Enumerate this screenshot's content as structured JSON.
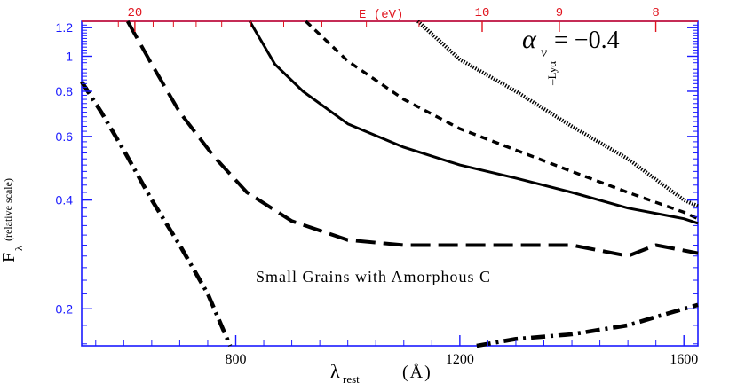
{
  "chart_data": {
    "type": "line",
    "title": "",
    "xlabel": "λ_rest (Å)",
    "xlabel_main": "λ",
    "xlabel_sub": "rest",
    "xlabel_unit": "(Å)",
    "ylabel": "F_λ",
    "ylabel_main": "F",
    "ylabel_sub": "λ",
    "ylabel_note": "(relative scale)",
    "yscale": "log",
    "xlim": [
      525,
      1625
    ],
    "ylim": [
      0.158,
      1.25
    ],
    "x_ticks": [
      800,
      1200,
      1600
    ],
    "y_ticks": [
      0.2,
      0.4,
      0.6,
      0.8,
      1,
      1.2
    ],
    "y_tick_labels": [
      "0.2",
      "0.4",
      "0.6",
      "0.8",
      "1",
      "1.2"
    ],
    "top_axis": {
      "label": "E (eV)",
      "ticks": [
        "20",
        "10",
        "9",
        "8"
      ],
      "tick_energies_eV": [
        20,
        10,
        9,
        8
      ],
      "color": "#e0141e"
    },
    "annotations": {
      "alpha": "α",
      "alpha_sub": "ν",
      "alpha_value": "= −0.4",
      "lya": "–Lyα",
      "grain_text": "Small Grains with Amorphous C"
    },
    "grid": false,
    "series": [
      {
        "style": "dotted",
        "x": [
          1125,
          1200,
          1300,
          1400,
          1500,
          1600,
          1625
        ],
        "y": [
          1.25,
          0.98,
          0.8,
          0.64,
          0.52,
          0.4,
          0.385
        ]
      },
      {
        "style": "short-dash",
        "x": [
          925,
          1000,
          1100,
          1200,
          1300,
          1400,
          1500,
          1600,
          1625
        ],
        "y": [
          1.25,
          0.97,
          0.76,
          0.63,
          0.55,
          0.48,
          0.42,
          0.37,
          0.355
        ]
      },
      {
        "style": "solid",
        "x": [
          825,
          870,
          920,
          1000,
          1100,
          1200,
          1300,
          1400,
          1500,
          1600,
          1625
        ],
        "y": [
          1.25,
          0.95,
          0.8,
          0.65,
          0.56,
          0.5,
          0.46,
          0.42,
          0.38,
          0.355,
          0.345
        ],
        "clip_at_frame": true
      },
      {
        "style": "long-dash",
        "x": [
          607,
          650,
          700,
          760,
          820,
          900,
          1000,
          1100,
          1200,
          1300,
          1400,
          1500,
          1550,
          1600,
          1625
        ],
        "y": [
          1.25,
          0.95,
          0.7,
          0.53,
          0.42,
          0.35,
          0.31,
          0.3,
          0.3,
          0.3,
          0.3,
          0.28,
          0.3,
          0.29,
          0.285
        ]
      },
      {
        "style": "dash-dot",
        "x": [
          525,
          560,
          600,
          650,
          700,
          750,
          790
        ],
        "y": [
          0.85,
          0.7,
          0.55,
          0.4,
          0.3,
          0.22,
          0.158
        ]
      },
      {
        "style": "dash-dot",
        "x": [
          1230,
          1300,
          1400,
          1500,
          1550,
          1600,
          1625
        ],
        "y": [
          0.158,
          0.165,
          0.17,
          0.18,
          0.19,
          0.2,
          0.205
        ]
      }
    ]
  }
}
